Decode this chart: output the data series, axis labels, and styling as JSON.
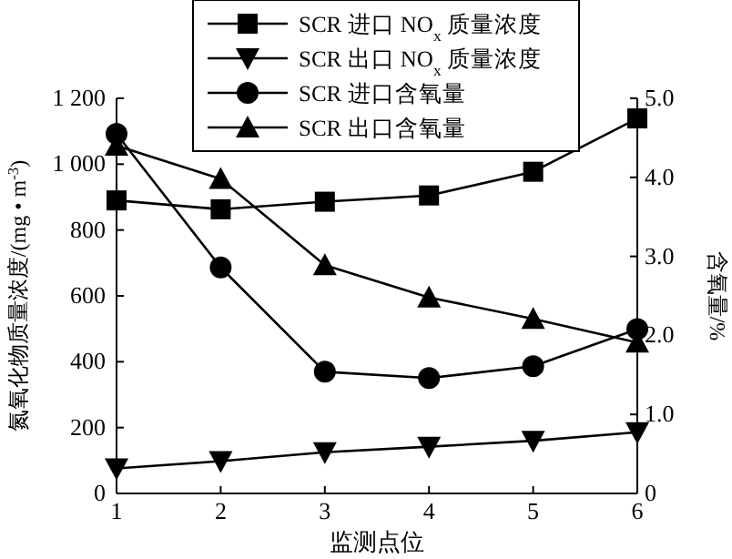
{
  "chart_data": {
    "type": "line",
    "xlabel": "监测点位",
    "ylabel": "氮氧化物质量浓度/(mg • m$^{-3}$)",
    "y2label": "含氧量/%",
    "x": [
      1,
      2,
      3,
      4,
      5,
      6
    ],
    "xlim": [
      1,
      6
    ],
    "xticks": [
      1,
      2,
      3,
      4,
      5,
      6
    ],
    "ylim": [
      0,
      1200
    ],
    "yticks": [
      0,
      200,
      400,
      600,
      800,
      {
        "value": 1000,
        "label": "1 000"
      },
      {
        "value": 1200,
        "label": "1 200"
      }
    ],
    "y2lim": [
      0,
      5
    ],
    "y2ticks": [
      0,
      {
        "value": 1,
        "label": "1.0"
      },
      {
        "value": 2,
        "label": "2.0"
      },
      {
        "value": 3,
        "label": "3.0"
      },
      {
        "value": 4,
        "label": "4.0"
      },
      {
        "value": 5,
        "label": "5.0"
      }
    ],
    "legend": "top",
    "grid": false,
    "line_style": "solid",
    "series": [
      {
        "name": "SCR 进口 NO$_{x}$ 质量浓度",
        "color": "#000000",
        "marker": "square",
        "values": [
          890,
          863,
          886,
          905,
          977,
          1139
        ]
      },
      {
        "name": "SCR 出口 NO$_{x}$ 质量浓度",
        "color": "#000000",
        "marker": "triangle-down",
        "values": [
          76,
          98,
          125,
          142,
          160,
          186
        ]
      },
      {
        "name": "SCR 进口含氧量",
        "color": "#000000",
        "marker": "circle",
        "axis": "y2",
        "values": [
          4.55,
          2.86,
          1.54,
          1.46,
          1.61,
          2.08
        ]
      },
      {
        "name": "SCR 出口含氧量",
        "color": "#000000",
        "marker": "triangle",
        "axis": "y2",
        "values": [
          4.4,
          3.98,
          2.89,
          2.48,
          2.21,
          1.91
        ]
      }
    ]
  }
}
